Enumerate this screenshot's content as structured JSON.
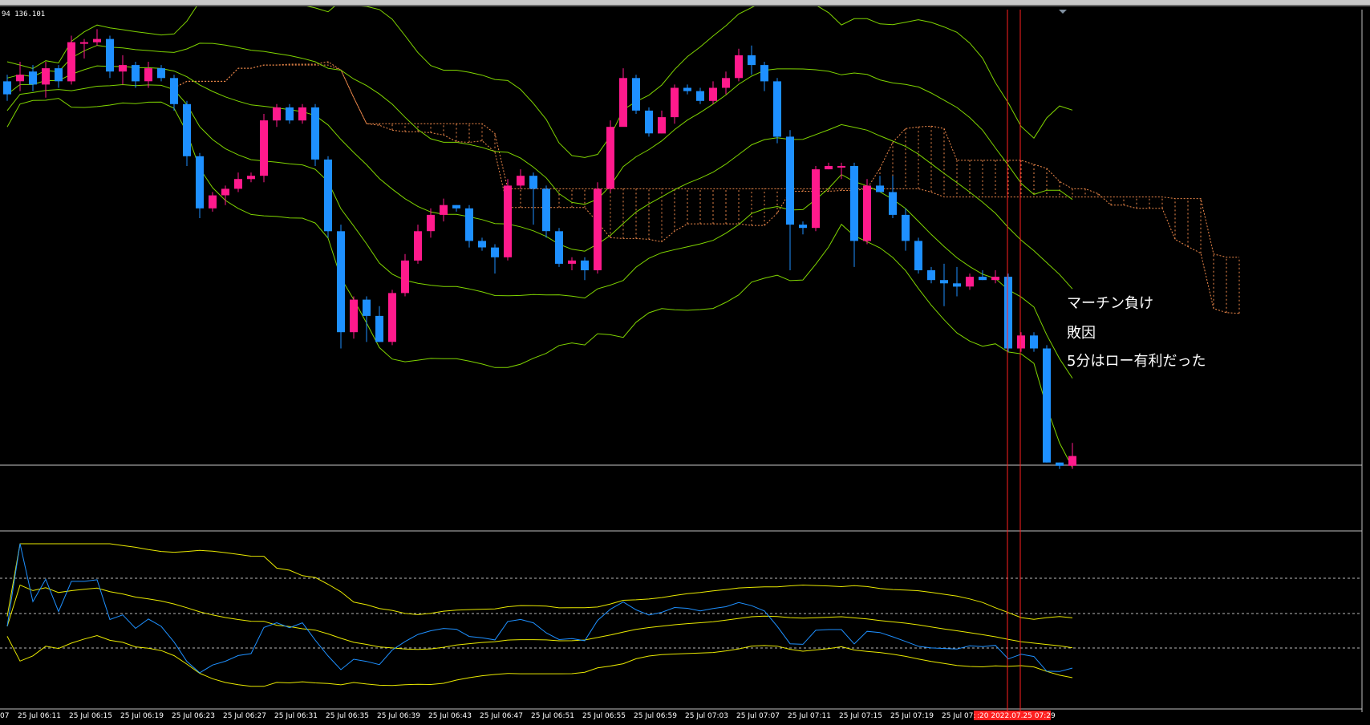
{
  "header": {
    "price_readout": "94 136.101"
  },
  "annotations": [
    "マーチン負け",
    "敗因",
    "5分はロー有利だった"
  ],
  "colors": {
    "bull": "#ff1a8c",
    "bear": "#1e90ff",
    "band": "#7fd400",
    "cloud": "#f08a4b",
    "rsi": "#1e90ff",
    "rsi_bands": "#e8e800",
    "marker": "#ff2020"
  },
  "chart_data": {
    "type": "candlestick",
    "time_labels": [
      "07",
      "25 Jul 06:11",
      "25 Jul 06:15",
      "25 Jul 06:19",
      "25 Jul 06:23",
      "25 Jul 06:27",
      "25 Jul 06:31",
      "25 Jul 06:35",
      "25 Jul 06:39",
      "25 Jul 06:43",
      "25 Jul 06:47",
      "25 Jul 06:51",
      "25 Jul 06:55",
      "25 Jul 06:59",
      "25 Jul 07:03",
      "25 Jul 07:07",
      "25 Jul 07:11",
      "25 Jul 07:15",
      "25 Jul 07:19",
      "25 Jul 07:"
    ],
    "highlight_time": ":20 2022.07.25 07:29",
    "ohlc": [
      [
        136.1,
        136.06,
        136.12,
        136.04
      ],
      [
        136.1,
        136.12,
        136.16,
        136.07
      ],
      [
        136.13,
        136.09,
        136.15,
        136.07
      ],
      [
        136.09,
        136.14,
        136.16,
        136.05
      ],
      [
        136.14,
        136.1,
        136.15,
        136.08
      ],
      [
        136.1,
        136.22,
        136.24,
        136.09
      ],
      [
        136.22,
        136.22,
        136.23,
        136.17
      ],
      [
        136.22,
        136.23,
        136.26,
        136.21
      ],
      [
        136.23,
        136.13,
        136.24,
        136.11
      ],
      [
        136.13,
        136.15,
        136.18,
        136.09
      ],
      [
        136.15,
        136.1,
        136.16,
        136.08
      ],
      [
        136.1,
        136.14,
        136.16,
        136.08
      ],
      [
        136.14,
        136.11,
        136.15,
        136.1
      ],
      [
        136.11,
        136.03,
        136.12,
        136.01
      ],
      [
        136.03,
        135.87,
        136.04,
        135.84
      ],
      [
        135.87,
        135.71,
        135.88,
        135.68
      ],
      [
        135.71,
        135.75,
        135.76,
        135.7
      ],
      [
        135.75,
        135.77,
        135.78,
        135.72
      ],
      [
        135.77,
        135.8,
        135.82,
        135.76
      ],
      [
        135.8,
        135.81,
        135.82,
        135.79
      ],
      [
        135.81,
        135.98,
        136.0,
        135.79
      ],
      [
        135.98,
        136.02,
        136.03,
        135.96
      ],
      [
        136.02,
        135.98,
        136.03,
        135.97
      ],
      [
        135.98,
        136.02,
        136.03,
        135.97
      ],
      [
        136.02,
        135.86,
        136.03,
        135.84
      ],
      [
        135.86,
        135.64,
        135.87,
        135.62
      ],
      [
        135.64,
        135.33,
        135.66,
        135.28
      ],
      [
        135.33,
        135.43,
        135.44,
        135.31
      ],
      [
        135.43,
        135.38,
        135.44,
        135.3
      ],
      [
        135.38,
        135.3,
        135.41,
        135.3
      ],
      [
        135.3,
        135.45,
        135.46,
        135.29
      ],
      [
        135.45,
        135.55,
        135.57,
        135.44
      ],
      [
        135.55,
        135.64,
        135.66,
        135.54
      ],
      [
        135.64,
        135.69,
        135.71,
        135.62
      ],
      [
        135.69,
        135.72,
        135.74,
        135.67
      ],
      [
        135.72,
        135.71,
        135.72,
        135.7
      ],
      [
        135.71,
        135.61,
        135.72,
        135.59
      ],
      [
        135.61,
        135.59,
        135.62,
        135.58
      ],
      [
        135.59,
        135.56,
        135.6,
        135.51
      ],
      [
        135.56,
        135.78,
        135.8,
        135.55
      ],
      [
        135.78,
        135.81,
        135.83,
        135.77
      ],
      [
        135.81,
        135.77,
        135.82,
        135.66
      ],
      [
        135.77,
        135.64,
        135.78,
        135.62
      ],
      [
        135.64,
        135.54,
        135.65,
        135.53
      ],
      [
        135.54,
        135.55,
        135.56,
        135.52
      ],
      [
        135.55,
        135.52,
        135.56,
        135.49
      ],
      [
        135.52,
        135.77,
        135.79,
        135.51
      ],
      [
        135.77,
        135.96,
        135.98,
        135.76
      ],
      [
        135.96,
        136.11,
        136.14,
        136.0
      ],
      [
        136.11,
        136.01,
        136.12,
        136.0
      ],
      [
        136.01,
        135.94,
        136.02,
        135.93
      ],
      [
        135.94,
        135.99,
        136.01,
        135.94
      ],
      [
        135.99,
        136.08,
        136.09,
        135.97
      ],
      [
        136.08,
        136.07,
        136.09,
        136.06
      ],
      [
        136.07,
        136.04,
        136.08,
        136.03
      ],
      [
        136.04,
        136.08,
        136.1,
        136.03
      ],
      [
        136.08,
        136.11,
        136.13,
        136.06
      ],
      [
        136.11,
        136.18,
        136.2,
        136.1
      ],
      [
        136.18,
        136.15,
        136.21,
        136.12
      ],
      [
        136.15,
        136.1,
        136.16,
        136.07
      ],
      [
        136.1,
        135.93,
        136.11,
        135.91
      ],
      [
        135.93,
        135.66,
        135.95,
        135.52
      ],
      [
        135.66,
        135.65,
        135.67,
        135.63
      ],
      [
        135.65,
        135.83,
        135.84,
        135.64
      ],
      [
        135.83,
        135.84,
        135.85,
        135.83
      ],
      [
        135.84,
        135.84,
        135.85,
        135.8
      ],
      [
        135.84,
        135.61,
        135.85,
        135.53
      ],
      [
        135.61,
        135.78,
        135.8,
        135.6
      ],
      [
        135.78,
        135.76,
        135.81,
        135.76
      ],
      [
        135.76,
        135.69,
        135.81,
        135.68
      ],
      [
        135.69,
        135.61,
        135.71,
        135.58
      ],
      [
        135.61,
        135.52,
        135.62,
        135.51
      ],
      [
        135.52,
        135.49,
        135.53,
        135.48
      ],
      [
        135.49,
        135.48,
        135.54,
        135.41
      ],
      [
        135.48,
        135.47,
        135.53,
        135.44
      ],
      [
        135.47,
        135.5,
        135.51,
        135.46
      ],
      [
        135.5,
        135.49,
        135.52,
        135.49
      ],
      [
        135.49,
        135.5,
        135.52,
        135.48
      ],
      [
        135.5,
        135.28,
        135.51,
        135.27
      ],
      [
        135.28,
        135.32,
        135.33,
        135.27
      ],
      [
        135.32,
        135.28,
        135.33,
        135.27
      ],
      [
        135.28,
        134.93,
        135.29,
        134.93
      ],
      [
        134.93,
        134.92,
        134.93,
        134.91
      ],
      [
        134.92,
        134.95,
        134.99,
        134.91
      ]
    ],
    "rsi": {
      "ylim": [
        0,
        100
      ],
      "levels": [
        70,
        50,
        30
      ]
    }
  }
}
